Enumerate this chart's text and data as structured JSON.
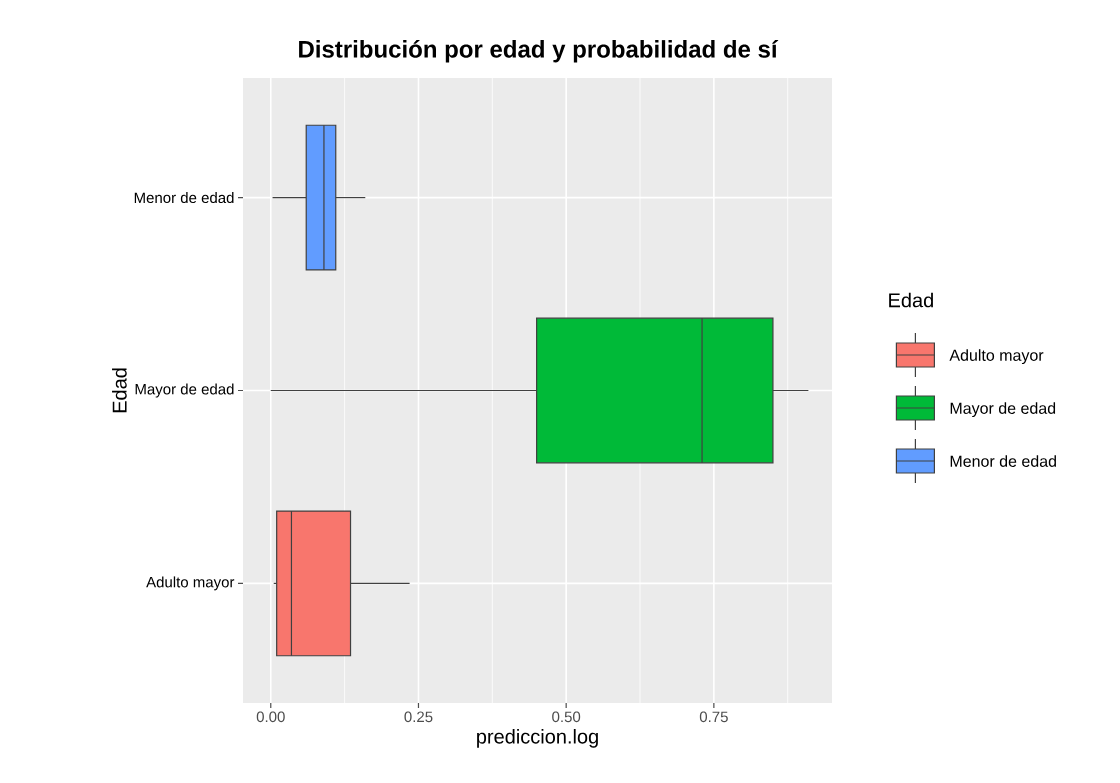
{
  "chart_data": {
    "type": "box",
    "title": "Distribución por edad y probabilidad de sí",
    "xlabel": "prediccion.log",
    "ylabel": "Edad",
    "legend_title": "Edad",
    "orientation": "horizontal",
    "categories": [
      "Menor de edad",
      "Mayor de edad",
      "Adulto mayor"
    ],
    "series": [
      {
        "name": "Adulto mayor",
        "color": "#f8766d",
        "boxes": [
          null,
          null,
          {
            "low": 0.005,
            "q1": 0.01,
            "median": 0.035,
            "q3": 0.135,
            "high": 0.235
          }
        ]
      },
      {
        "name": "Mayor de edad",
        "color": "#00ba38",
        "boxes": [
          null,
          {
            "low": 0.0,
            "q1": 0.45,
            "median": 0.73,
            "q3": 0.85,
            "high": 0.91
          },
          null
        ]
      },
      {
        "name": "Menor de edad",
        "color": "#619cff",
        "boxes": [
          {
            "low": 0.003,
            "q1": 0.06,
            "median": 0.09,
            "q3": 0.11,
            "high": 0.16
          },
          null,
          null
        ]
      }
    ],
    "xlim": [
      -0.047,
      0.95
    ],
    "xticks": [
      {
        "value": 0,
        "label": "0.00"
      },
      {
        "value": 0.25,
        "label": "0.25"
      },
      {
        "value": 0.5,
        "label": "0.50"
      },
      {
        "value": 0.75,
        "label": "0.75"
      }
    ],
    "grid": true,
    "legend": "right"
  }
}
